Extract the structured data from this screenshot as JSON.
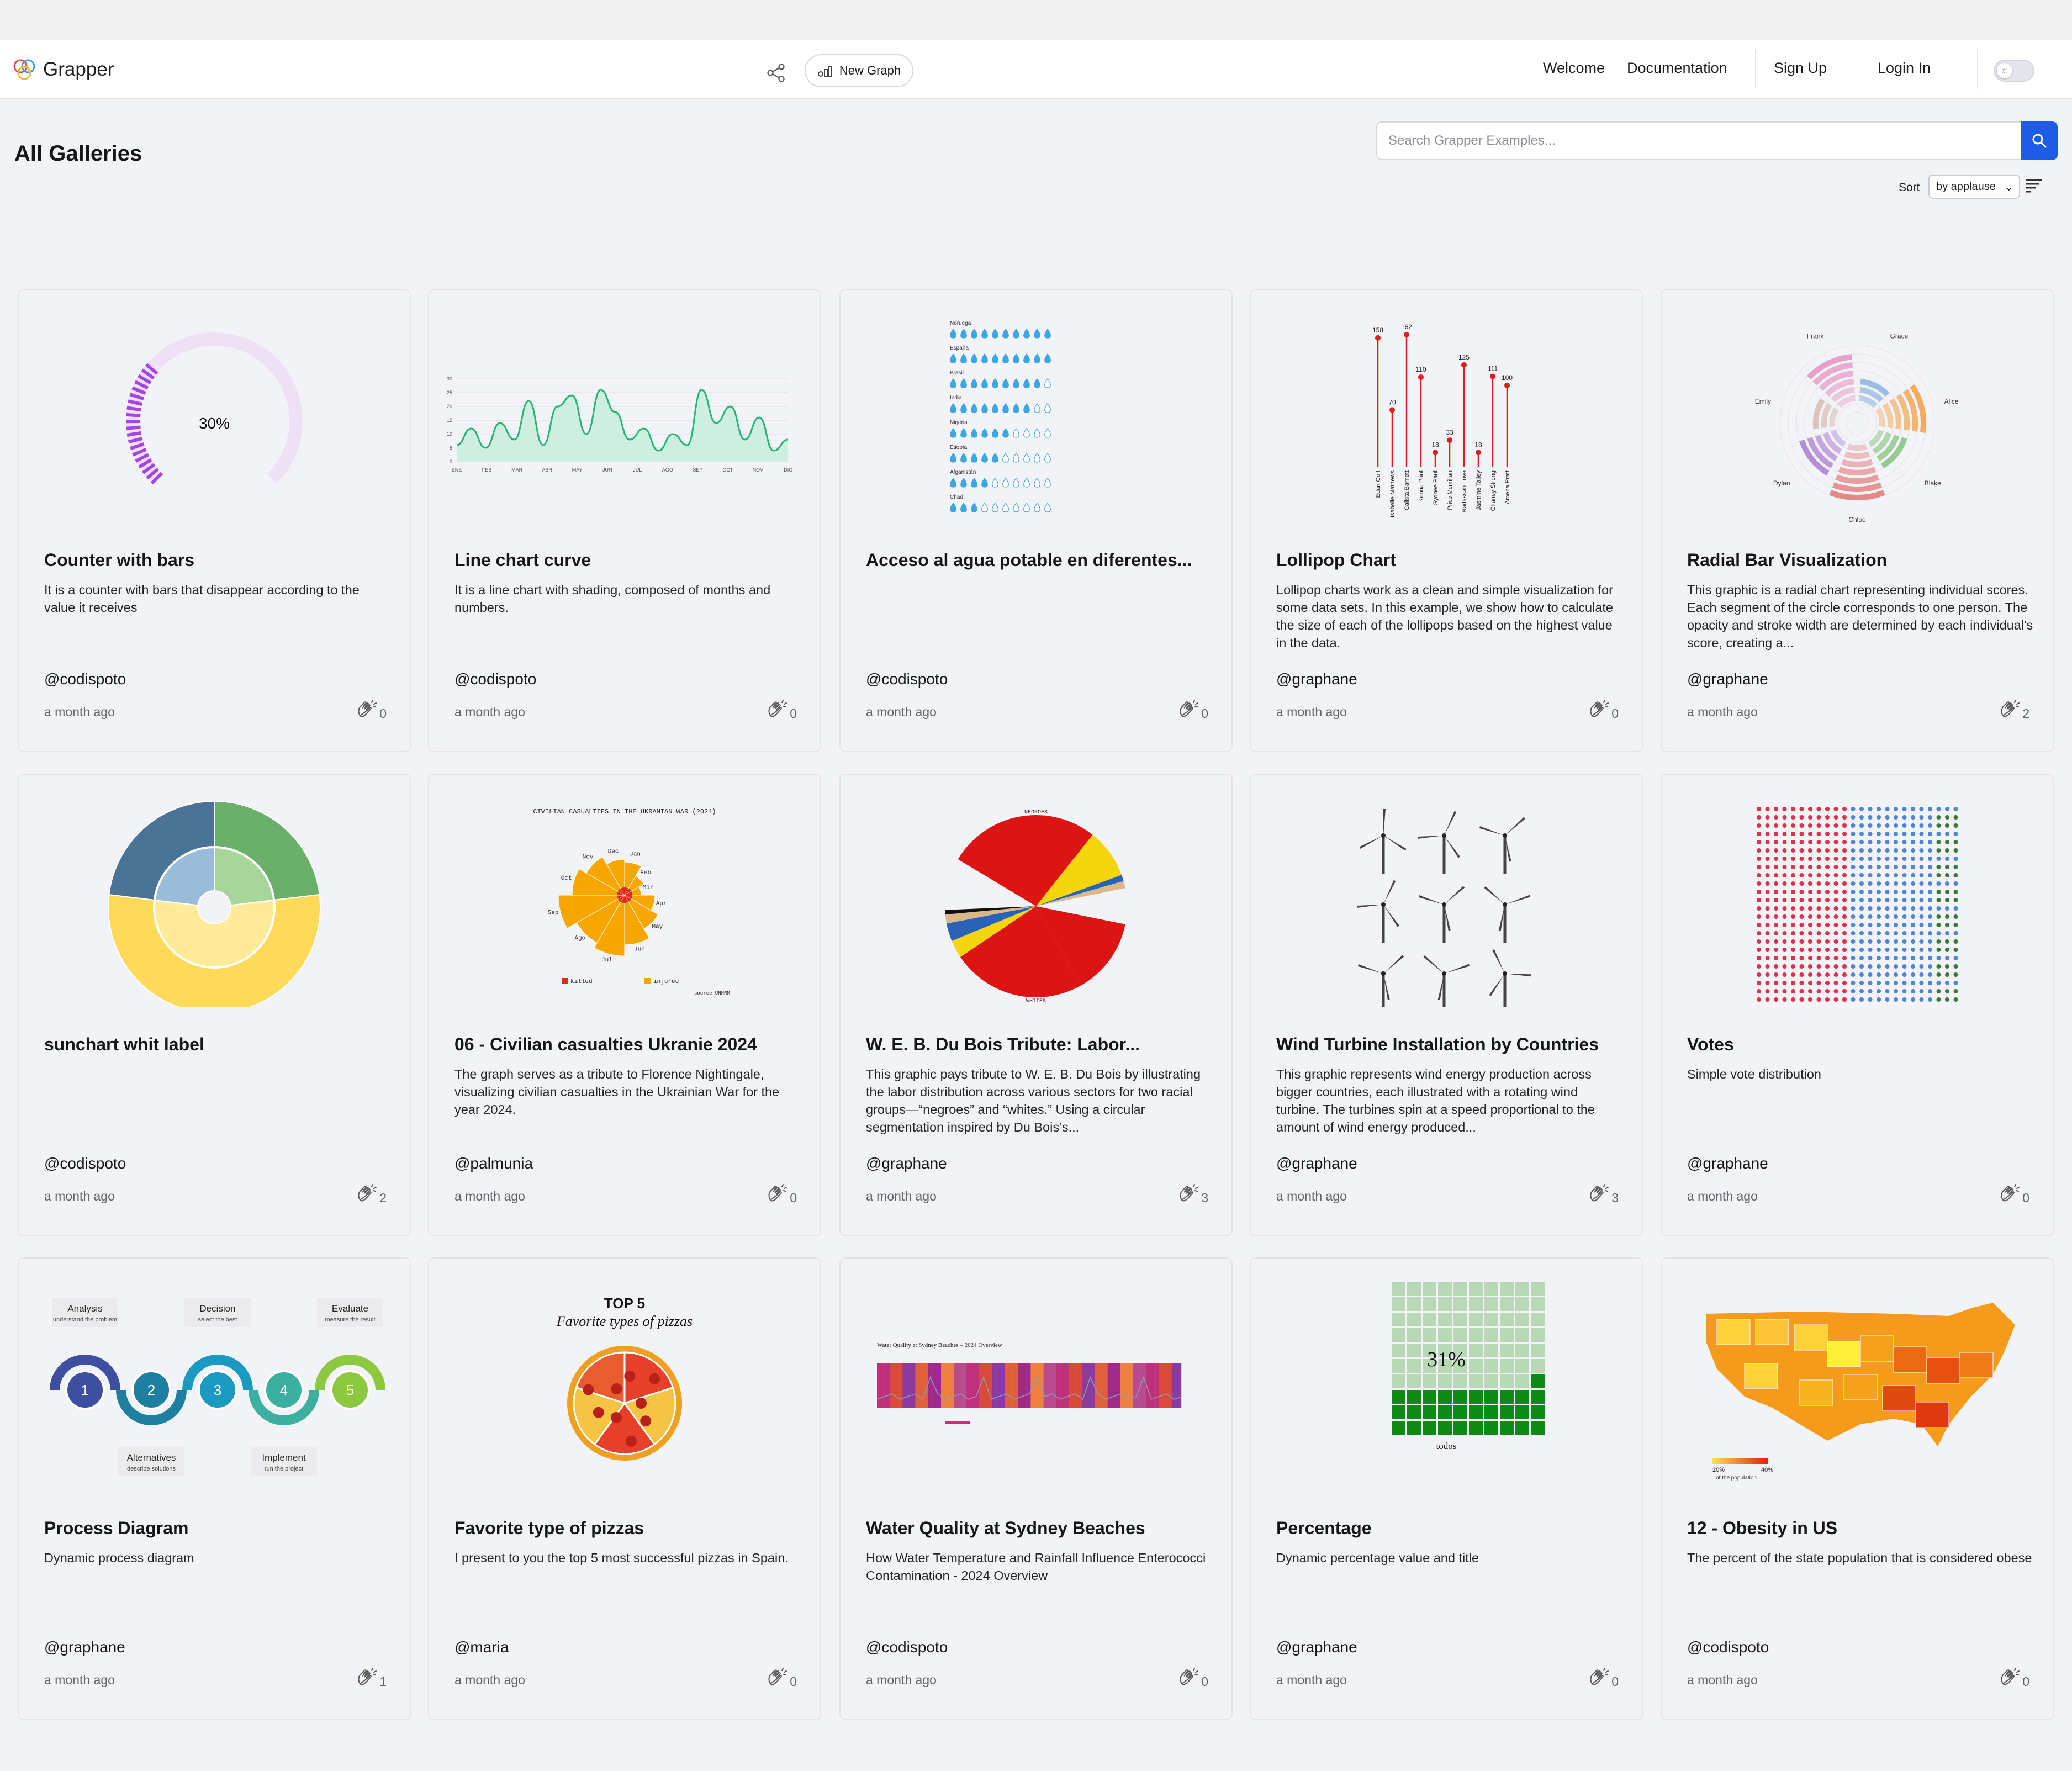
{
  "header": {
    "logo_text": "Grapper",
    "new_graph_label": "New Graph",
    "nav": [
      "Welcome",
      "Documentation",
      "Sign Up",
      "Login In"
    ]
  },
  "page": {
    "title": "All Galleries",
    "search_placeholder": "Search Grapper Examples...",
    "sort_label": "Sort",
    "sort_value": "by applause"
  },
  "colors": {
    "accent": "#1e5ce6",
    "card_bg": "#f2f3f6"
  },
  "cards": [
    {
      "title": "Counter with bars",
      "desc": "It is a counter with bars that disappear according to the value it receives",
      "author": "@codispoto",
      "time": "a month ago",
      "claps": "0"
    },
    {
      "title": "Line chart curve",
      "desc": "It is a line chart with shading, composed of months and numbers.",
      "author": "@codispoto",
      "time": "a month ago",
      "claps": "0"
    },
    {
      "title": "Acceso al agua potable en diferentes...",
      "desc": "",
      "author": "@codispoto",
      "time": "a month ago",
      "claps": "0"
    },
    {
      "title": "Lollipop Chart",
      "desc": "Lollipop charts work as a clean and simple visualization for some data sets. In this example, we show how to calculate the size of each of the lollipops based on the highest value in the data.",
      "author": "@graphane",
      "time": "a month ago",
      "claps": "0"
    },
    {
      "title": "Radial Bar Visualization",
      "desc": "This graphic is a radial chart representing individual scores. Each segment of the circle corresponds to one person. The opacity and stroke width are determined by each individual's score, creating a...",
      "author": "@graphane",
      "time": "a month ago",
      "claps": "2"
    },
    {
      "title": "sunchart whit label",
      "desc": "",
      "author": "@codispoto",
      "time": "a month ago",
      "claps": "2"
    },
    {
      "title": "06 - Civilian casualties Ukranie 2024",
      "desc": "The graph serves as a tribute to Florence Nightingale, visualizing civilian casualties in the Ukrainian War for the year 2024.",
      "author": "@palmunia",
      "time": "a month ago",
      "claps": "0"
    },
    {
      "title": "W. E. B. Du Bois Tribute: Labor...",
      "desc": "This graphic pays tribute to W. E. B. Du Bois by illustrating the labor distribution across various sectors for two racial groups—“negroes” and “whites.” Using a circular segmentation inspired by Du Bois’s...",
      "author": "@graphane",
      "time": "a month ago",
      "claps": "3"
    },
    {
      "title": "Wind Turbine Installation by Countries",
      "desc": "This graphic represents wind energy production across bigger countries, each illustrated with a rotating wind turbine. The turbines spin at a speed proportional to the amount of wind energy produced...",
      "author": "@graphane",
      "time": "a month ago",
      "claps": "3"
    },
    {
      "title": "Votes",
      "desc": "Simple vote distribution",
      "author": "@graphane",
      "time": "a month ago",
      "claps": "0"
    },
    {
      "title": "Process Diagram",
      "desc": "Dynamic process diagram",
      "author": "@graphane",
      "time": "a month ago",
      "claps": "1"
    },
    {
      "title": "Favorite type of pizzas",
      "desc": "I present to you the top 5 most successful pizzas in Spain.",
      "author": "@maria",
      "time": "a month ago",
      "claps": "0"
    },
    {
      "title": "Water Quality at Sydney Beaches",
      "desc": "How Water Temperature and Rainfall Influence Enterococci Contamination - 2024 Overview",
      "author": "@codispoto",
      "time": "a month ago",
      "claps": "0"
    },
    {
      "title": "Percentage",
      "desc": "Dynamic percentage value and title",
      "author": "@graphane",
      "time": "a month ago",
      "claps": "0"
    },
    {
      "title": "12 - Obesity in US",
      "desc": "The percent of the state population that is considered obese",
      "author": "@codispoto",
      "time": "a month ago",
      "claps": "0"
    }
  ],
  "thumbs": {
    "counter": {
      "label": "30%",
      "value": 30
    },
    "line": {
      "months": [
        "ENE",
        "FEB",
        "MAR",
        "ABR",
        "MAY",
        "JUN",
        "JUL",
        "AGO",
        "SEP",
        "OCT",
        "NOV",
        "DIC"
      ],
      "yticks": [
        "30",
        "25",
        "20",
        "15",
        "10",
        "5",
        "0"
      ]
    },
    "water": [
      {
        "country": "Noruega",
        "filled": 10
      },
      {
        "country": "España",
        "filled": 10
      },
      {
        "country": "Brasil",
        "filled": 9
      },
      {
        "country": "India",
        "filled": 8
      },
      {
        "country": "Nigeria",
        "filled": 6
      },
      {
        "country": "Etiopía",
        "filled": 5
      },
      {
        "country": "Afganistán",
        "filled": 4
      },
      {
        "country": "Chad",
        "filled": 3
      }
    ],
    "lollipop": [
      {
        "name": "Edan Goff",
        "value": 158
      },
      {
        "name": "Isabelle Mathews",
        "value": 70
      },
      {
        "name": "Calista Barnett",
        "value": 162
      },
      {
        "name": "Kenna Paul",
        "value": 110
      },
      {
        "name": "Sydnee Paul",
        "value": 18
      },
      {
        "name": "Price Mcmillan",
        "value": 33
      },
      {
        "name": "Hadassah Love",
        "value": 125
      },
      {
        "name": "Jasmine Talley",
        "value": 18
      },
      {
        "name": "Chaney Strong",
        "value": 111
      },
      {
        "name": "Amena Pratt",
        "value": 100
      }
    ],
    "radial": {
      "names": [
        "Grace",
        "Alice",
        "Blake",
        "Chloe",
        "Dylan",
        "Emily",
        "Frank"
      ]
    },
    "ukraine": {
      "title": "CIVILIAN CASUALTIES IN THE UKRANIAN WAR (2024)",
      "killed": "killed",
      "injured": "injured",
      "source": "source UNHRM",
      "months": [
        "Jan",
        "Feb",
        "Mar",
        "Apr",
        "May",
        "Jun",
        "Jul",
        "Ago",
        "Sep",
        "Oct",
        "Nov",
        "Dec"
      ]
    },
    "dubois": {
      "top": "NEGROES",
      "bottom": "WHITES"
    },
    "pizza": {
      "title": "TOP 5",
      "subtitle": "Favorite types of pizzas"
    },
    "water_quality": {
      "title": "Water Quality at Sydney Beaches – 2024 Overview"
    },
    "percentage": {
      "label": "31%",
      "caption": "todos",
      "value": 31
    },
    "obesity": {
      "legend_min": "20%",
      "legend_max": "40%",
      "legend_caption": "of the population"
    },
    "process": [
      {
        "n": "1",
        "title": "Analysis",
        "sub": "understand the problem",
        "color": "#3f4fa0"
      },
      {
        "n": "2",
        "title": "Alternatives",
        "sub": "describe solutions",
        "color": "#1f7fa0"
      },
      {
        "n": "3",
        "title": "Decision",
        "sub": "select the best",
        "color": "#1a9ac0"
      },
      {
        "n": "4",
        "title": "Implement",
        "sub": "run the project",
        "color": "#3bb0a0"
      },
      {
        "n": "5",
        "title": "Evaluate",
        "sub": "measure the result",
        "color": "#8cc840"
      }
    ]
  }
}
